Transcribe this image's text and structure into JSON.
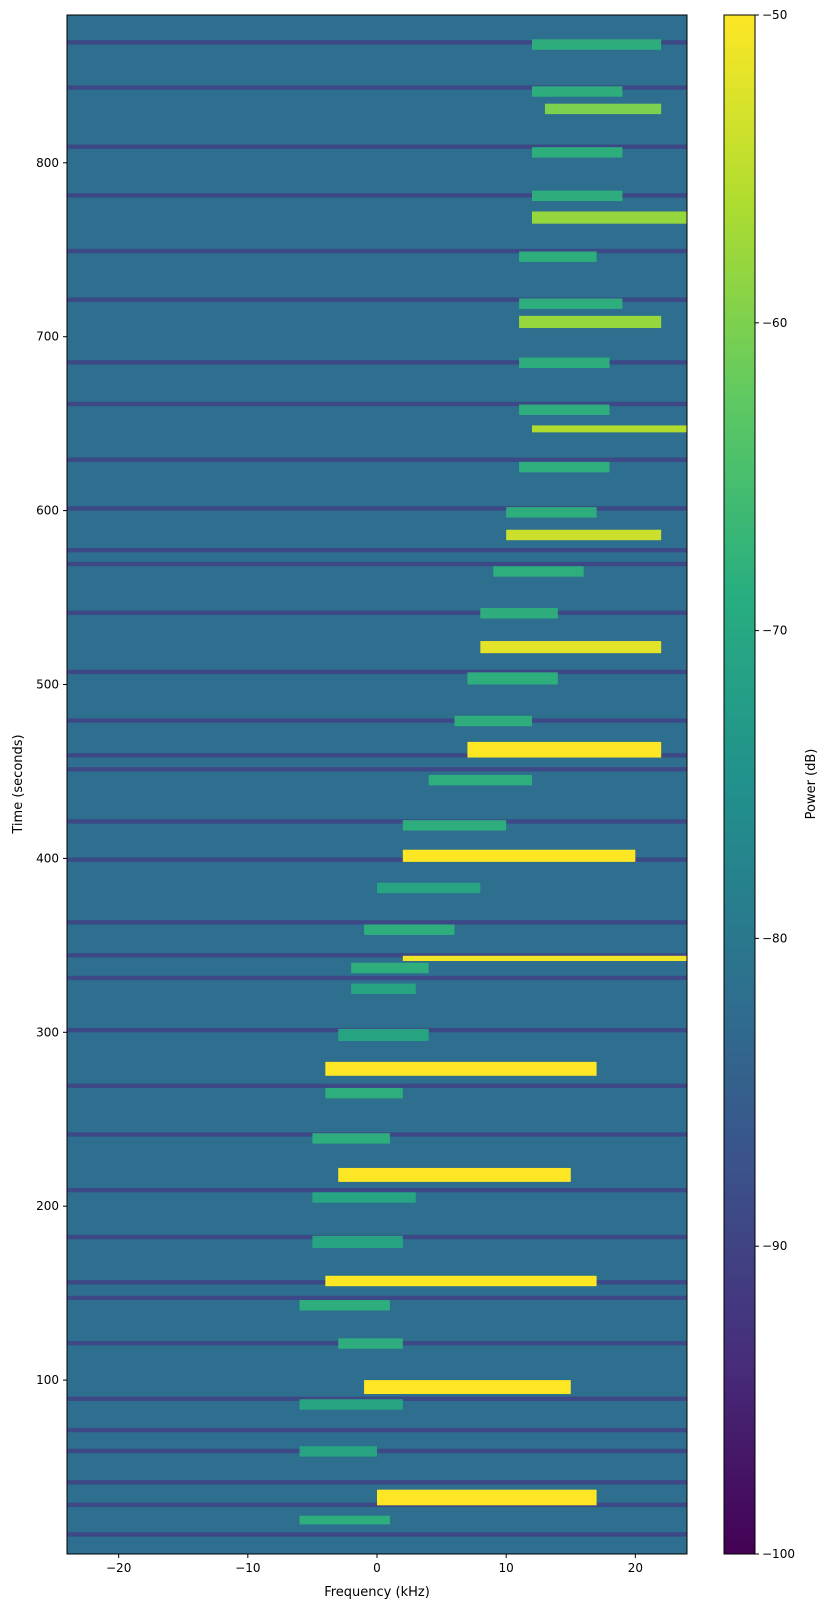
{
  "chart_data": {
    "type": "heatmap",
    "title": "",
    "xlabel": "Frequency (kHz)",
    "ylabel": "Time (seconds)",
    "xlim": [
      -24,
      24
    ],
    "ylim": [
      0,
      885
    ],
    "x_ticks": [
      -20,
      -10,
      0,
      10,
      20
    ],
    "x_tick_labels": [
      "−20",
      "−10",
      "0",
      "10",
      "20"
    ],
    "y_ticks": [
      100,
      200,
      300,
      400,
      500,
      600,
      700,
      800
    ],
    "y_tick_labels": [
      "100",
      "200",
      "300",
      "400",
      "500",
      "600",
      "700",
      "800"
    ],
    "colorbar": {
      "label": "Power (dB)",
      "range": [
        -100,
        -50
      ],
      "ticks": [
        -100,
        -90,
        -80,
        -70,
        -60,
        -50
      ],
      "tick_labels": [
        "−100",
        "−90",
        "−80",
        "−70",
        "−60",
        "−50"
      ],
      "colormap": "viridis"
    },
    "background_power_db": -82,
    "noise_floor_db": -98,
    "strong_bursts": [
      {
        "t0": 28,
        "t1": 37,
        "f0": 0,
        "f1": 17,
        "power_db": -50
      },
      {
        "t0": 92,
        "t1": 100,
        "f0": -1,
        "f1": 15,
        "power_db": -50
      },
      {
        "t0": 154,
        "t1": 160,
        "f0": -4,
        "f1": 17,
        "power_db": -50
      },
      {
        "t0": 214,
        "t1": 222,
        "f0": -3,
        "f1": 15,
        "power_db": -50
      },
      {
        "t0": 275,
        "t1": 283,
        "f0": -4,
        "f1": 17,
        "power_db": -50
      },
      {
        "t0": 341,
        "t1": 344,
        "f0": 2,
        "f1": 24,
        "power_db": -51
      },
      {
        "t0": 398,
        "t1": 405,
        "f0": 2,
        "f1": 20,
        "power_db": -50
      },
      {
        "t0": 458,
        "t1": 467,
        "f0": 7,
        "f1": 22,
        "power_db": -50
      },
      {
        "t0": 518,
        "t1": 525,
        "f0": 8,
        "f1": 22,
        "power_db": -52
      },
      {
        "t0": 583,
        "t1": 589,
        "f0": 10,
        "f1": 22,
        "power_db": -54
      },
      {
        "t0": 645,
        "t1": 649,
        "f0": 12,
        "f1": 24,
        "power_db": -56
      },
      {
        "t0": 705,
        "t1": 712,
        "f0": 11,
        "f1": 22,
        "power_db": -58
      },
      {
        "t0": 765,
        "t1": 772,
        "f0": 12,
        "f1": 24,
        "power_db": -58
      },
      {
        "t0": 828,
        "t1": 834,
        "f0": 13,
        "f1": 22,
        "power_db": -60
      }
    ],
    "weak_bursts": [
      {
        "t0": 17,
        "t1": 22,
        "f0": -6,
        "f1": 1,
        "power_db": -68
      },
      {
        "t0": 56,
        "t1": 62,
        "f0": -6,
        "f1": 0,
        "power_db": -70
      },
      {
        "t0": 83,
        "t1": 89,
        "f0": -6,
        "f1": 2,
        "power_db": -70
      },
      {
        "t0": 118,
        "t1": 124,
        "f0": -3,
        "f1": 2,
        "power_db": -68
      },
      {
        "t0": 140,
        "t1": 146,
        "f0": -6,
        "f1": 1,
        "power_db": -68
      },
      {
        "t0": 176,
        "t1": 183,
        "f0": -5,
        "f1": 2,
        "power_db": -70
      },
      {
        "t0": 202,
        "t1": 208,
        "f0": -5,
        "f1": 3,
        "power_db": -70
      },
      {
        "t0": 236,
        "t1": 242,
        "f0": -5,
        "f1": 1,
        "power_db": -68
      },
      {
        "t0": 262,
        "t1": 268,
        "f0": -4,
        "f1": 2,
        "power_db": -68
      },
      {
        "t0": 295,
        "t1": 302,
        "f0": -3,
        "f1": 4,
        "power_db": -70
      },
      {
        "t0": 322,
        "t1": 328,
        "f0": -2,
        "f1": 3,
        "power_db": -70
      },
      {
        "t0": 334,
        "t1": 340,
        "f0": -2,
        "f1": 4,
        "power_db": -68
      },
      {
        "t0": 356,
        "t1": 362,
        "f0": -1,
        "f1": 6,
        "power_db": -68
      },
      {
        "t0": 380,
        "t1": 386,
        "f0": 0,
        "f1": 8,
        "power_db": -70
      },
      {
        "t0": 416,
        "t1": 422,
        "f0": 2,
        "f1": 10,
        "power_db": -68
      },
      {
        "t0": 442,
        "t1": 448,
        "f0": 4,
        "f1": 12,
        "power_db": -68
      },
      {
        "t0": 476,
        "t1": 482,
        "f0": 6,
        "f1": 12,
        "power_db": -68
      },
      {
        "t0": 500,
        "t1": 507,
        "f0": 7,
        "f1": 14,
        "power_db": -68
      },
      {
        "t0": 538,
        "t1": 544,
        "f0": 8,
        "f1": 14,
        "power_db": -68
      },
      {
        "t0": 562,
        "t1": 568,
        "f0": 9,
        "f1": 16,
        "power_db": -68
      },
      {
        "t0": 596,
        "t1": 602,
        "f0": 10,
        "f1": 17,
        "power_db": -68
      },
      {
        "t0": 622,
        "t1": 628,
        "f0": 11,
        "f1": 18,
        "power_db": -68
      },
      {
        "t0": 655,
        "t1": 661,
        "f0": 11,
        "f1": 18,
        "power_db": -68
      },
      {
        "t0": 682,
        "t1": 688,
        "f0": 11,
        "f1": 18,
        "power_db": -68
      },
      {
        "t0": 716,
        "t1": 722,
        "f0": 11,
        "f1": 19,
        "power_db": -68
      },
      {
        "t0": 743,
        "t1": 749,
        "f0": 11,
        "f1": 17,
        "power_db": -68
      },
      {
        "t0": 778,
        "t1": 784,
        "f0": 12,
        "f1": 19,
        "power_db": -68
      },
      {
        "t0": 803,
        "t1": 809,
        "f0": 12,
        "f1": 19,
        "power_db": -68
      },
      {
        "t0": 838,
        "t1": 844,
        "f0": 12,
        "f1": 19,
        "power_db": -68
      },
      {
        "t0": 865,
        "t1": 871,
        "f0": 12,
        "f1": 22,
        "power_db": -68
      }
    ],
    "dark_stripes": [
      10,
      27,
      40,
      58,
      70,
      88,
      120,
      146,
      155,
      181,
      208,
      240,
      268,
      300,
      330,
      343,
      362,
      398,
      420,
      450,
      458,
      478,
      506,
      540,
      568,
      576,
      600,
      628,
      660,
      684,
      720,
      748,
      780,
      808,
      842,
      868
    ]
  }
}
